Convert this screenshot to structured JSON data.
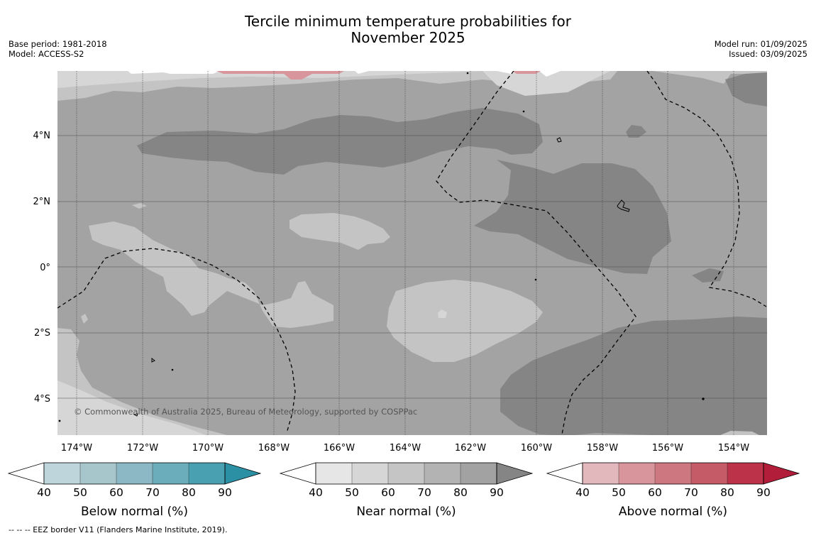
{
  "title": {
    "line1": "Tercile minimum temperature probabilities for",
    "line2": "November 2025"
  },
  "meta_left": {
    "base_period": "Base period: 1981-2018",
    "model": "Model: ACCESS-S2"
  },
  "meta_right": {
    "model_run": "Model run: 01/09/2025",
    "issued": "Issued: 03/09/2025"
  },
  "credit": "© Commonwealth of Australia 2025, Bureau of Meteorology, supported by COSPPac",
  "footnote": "--  --  -- EEZ border V11 (Flanders Marine Institute, 2019).",
  "map": {
    "lat_ticks": [
      "4°N",
      "2°N",
      "0°",
      "2°S",
      "4°S"
    ],
    "lon_ticks": [
      "174°W",
      "172°W",
      "170°W",
      "168°W",
      "166°W",
      "164°W",
      "162°W",
      "160°W",
      "158°W",
      "156°W",
      "154°W"
    ]
  },
  "colorbars": [
    {
      "label": "Below normal (%)",
      "ticks": [
        "40",
        "50",
        "60",
        "70",
        "80",
        "90"
      ],
      "colors": [
        "#ffffff",
        "#bed5dc",
        "#a7c6cc",
        "#8bb8c4",
        "#6cadbb",
        "#49a0b0",
        "#2c90a4"
      ]
    },
    {
      "label": "Near normal (%)",
      "ticks": [
        "40",
        "50",
        "60",
        "70",
        "80",
        "90"
      ],
      "colors": [
        "#ffffff",
        "#e6e6e6",
        "#d6d6d6",
        "#c5c5c5",
        "#b3b3b3",
        "#a2a2a2",
        "#858585"
      ]
    },
    {
      "label": "Above normal (%)",
      "ticks": [
        "40",
        "50",
        "60",
        "70",
        "80",
        "90"
      ],
      "colors": [
        "#ffffff",
        "#e3b8bd",
        "#d8959c",
        "#cd7880",
        "#c45b67",
        "#bc3249",
        "#b21e39"
      ]
    }
  ]
}
